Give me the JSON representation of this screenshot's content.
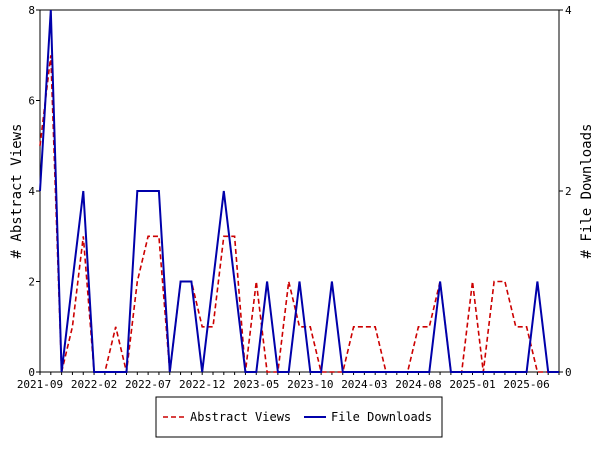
{
  "chart_data": {
    "type": "line",
    "x": [
      "2021-09",
      "2021-10",
      "2021-11",
      "2021-12",
      "2022-01",
      "2022-02",
      "2022-03",
      "2022-04",
      "2022-05",
      "2022-06",
      "2022-07",
      "2022-08",
      "2022-09",
      "2022-10",
      "2022-11",
      "2022-12",
      "2023-01",
      "2023-02",
      "2023-03",
      "2023-04",
      "2023-05",
      "2023-06",
      "2023-07",
      "2023-08",
      "2023-09",
      "2023-10",
      "2023-11",
      "2023-12",
      "2024-01",
      "2024-02",
      "2024-03",
      "2024-04",
      "2024-05",
      "2024-06",
      "2024-07",
      "2024-08",
      "2024-09",
      "2024-10",
      "2024-11",
      "2024-12",
      "2025-01",
      "2025-02",
      "2025-03",
      "2025-04",
      "2025-05",
      "2025-06",
      "2025-07",
      "2025-08",
      "2025-09"
    ],
    "x_tick_labels": [
      "2021-09",
      "2022-02",
      "2022-07",
      "2022-12",
      "2023-05",
      "2023-10",
      "2024-03",
      "2024-08",
      "2025-01",
      "2025-06"
    ],
    "series": [
      {
        "name": "Abstract Views",
        "axis": "left",
        "color": "#cc0000",
        "style": "dashed",
        "values": [
          5,
          7,
          0,
          1,
          3,
          0,
          0,
          1,
          0,
          2,
          3,
          3,
          0,
          2,
          2,
          1,
          1,
          3,
          3,
          0,
          2,
          0,
          0,
          2,
          1,
          1,
          0,
          0,
          0,
          1,
          1,
          1,
          0,
          0,
          0,
          1,
          1,
          2,
          0,
          0,
          2,
          0,
          2,
          2,
          1,
          1,
          0,
          0,
          0
        ]
      },
      {
        "name": "File Downloads",
        "axis": "right",
        "color": "#0000aa",
        "style": "solid",
        "values": [
          2,
          4,
          0,
          1,
          2,
          0,
          0,
          0,
          0,
          2,
          2,
          2,
          0,
          1,
          1,
          0,
          1,
          2,
          1,
          0,
          0,
          1,
          0,
          0,
          1,
          0,
          0,
          1,
          0,
          0,
          0,
          0,
          0,
          0,
          0,
          0,
          0,
          1,
          0,
          0,
          0,
          0,
          0,
          0,
          0,
          0,
          1,
          0,
          0
        ]
      }
    ],
    "ylabel": "# Abstract Views",
    "y2label": "# File Downloads",
    "ylim": [
      0,
      8
    ],
    "y2lim": [
      0,
      4
    ],
    "yticks": [
      0,
      2,
      4,
      6,
      8
    ],
    "y2ticks": [
      0,
      2,
      4
    ],
    "grid": false,
    "legend": "bottom"
  }
}
